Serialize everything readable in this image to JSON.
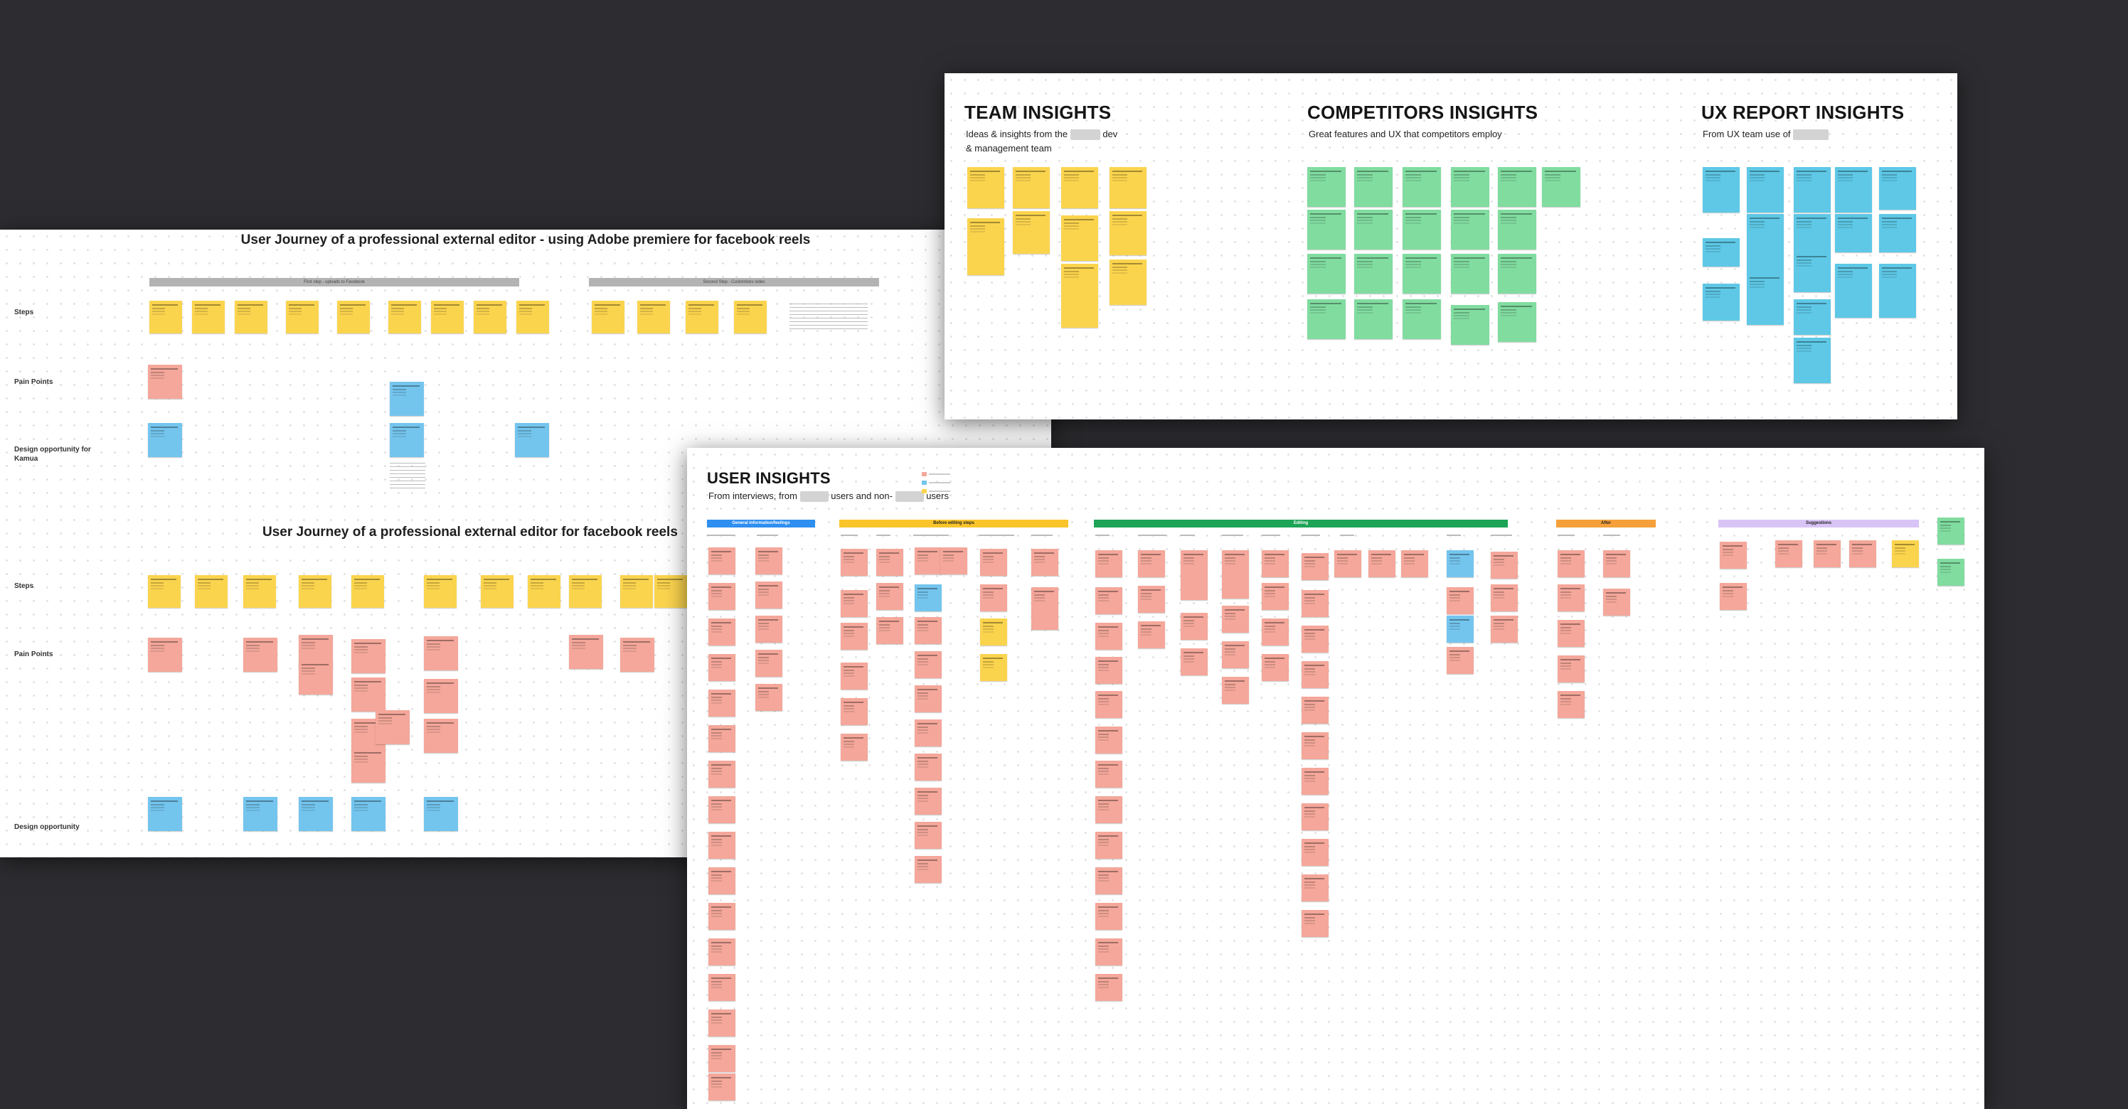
{
  "journey_board": {
    "title_1": "User Journey of a professional external editor - using Adobe premiere for facebook reels",
    "title_2": "User Journey of a professional external editor for facebook reels",
    "phase_1": "First step - uploads to Facebook",
    "phase_2": "Second Step - Customizes video",
    "rows": {
      "steps": "Steps",
      "pain_points": "Pain Points",
      "design_opportunity_for": "Design opportunity for",
      "design_opportunity_for_2": "Kamua",
      "design_opportunity": "Design opportunity"
    }
  },
  "team_board": {
    "team": {
      "title": "TEAM INSIGHTS",
      "subtitle_1": "Ideas & insights from the",
      "subtitle_1b": "dev",
      "subtitle_2": "& management team"
    },
    "competitors": {
      "title": "COMPETITORS INSIGHTS",
      "subtitle": "Great features and UX that competitors employ"
    },
    "ux": {
      "title": "UX REPORT INSIGHTS",
      "subtitle": "From UX team use of"
    }
  },
  "user_board": {
    "title": "USER INSIGHTS",
    "subtitle_a": "From interviews, from",
    "subtitle_b": "users and non-",
    "subtitle_c": "users",
    "bands": {
      "general": "General information/feelings",
      "before": "Before editing steps",
      "editing": "Editing",
      "after": "After",
      "suggestions": "Suggestions"
    },
    "colors": {
      "general": "#2f8ff0",
      "before": "#f9c52b",
      "editing": "#1da456",
      "after": "#f5a03a",
      "suggestions": "#d9c4f6"
    }
  }
}
